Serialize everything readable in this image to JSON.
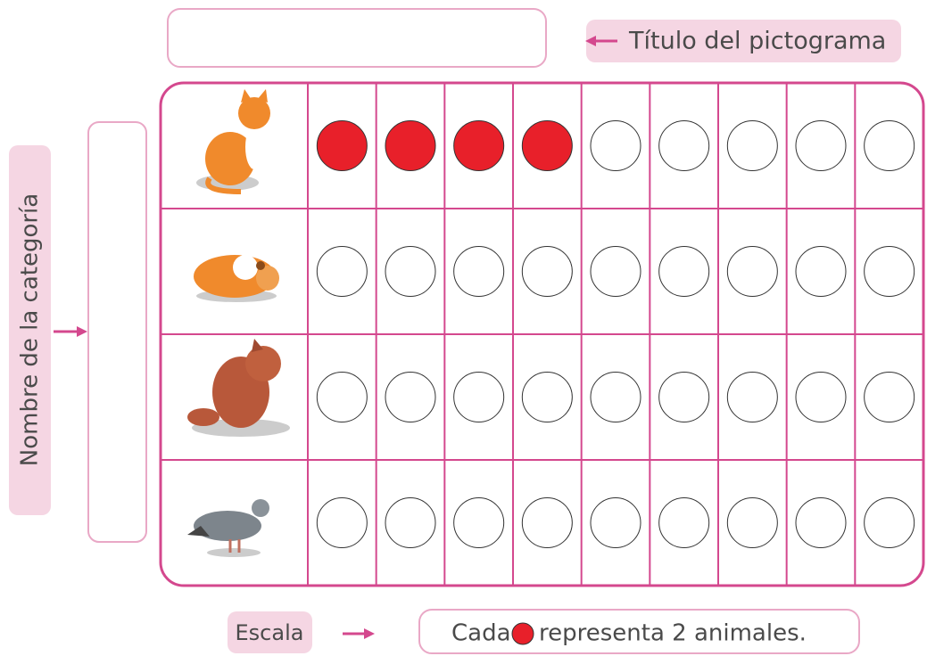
{
  "header": {
    "title_label": "Título del pictograma"
  },
  "side": {
    "category_label": "Nombre de la categoría"
  },
  "grid": {
    "columns": 9,
    "filled": [
      4,
      0,
      0,
      0
    ],
    "filled_color": "#e8202a"
  },
  "footer": {
    "scale_label": "Escala",
    "scale_before": "Cada",
    "scale_after": "representa 2 animales."
  }
}
